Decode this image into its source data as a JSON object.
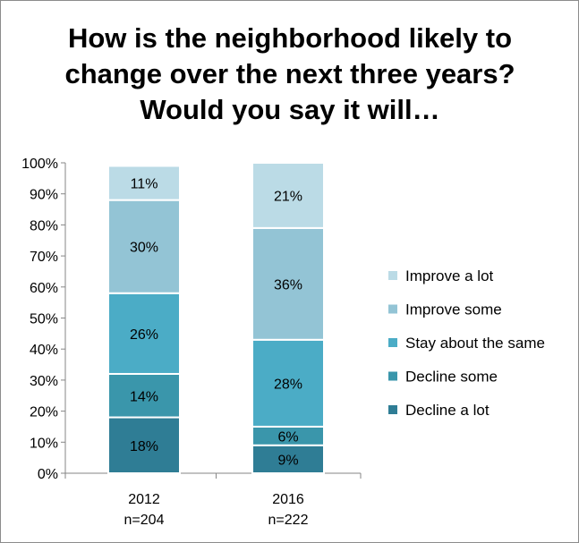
{
  "chart_data": {
    "type": "bar",
    "stacked": true,
    "percent": true,
    "title": "How is the neighborhood likely to change over the next three years? Would you say it will…",
    "categories": [
      {
        "year": "2012",
        "n": "n=204"
      },
      {
        "year": "2016",
        "n": "n=222"
      }
    ],
    "series": [
      {
        "name": "Decline a lot",
        "color": "#2f7d95",
        "values": [
          18,
          9
        ],
        "labels": [
          "18%",
          "9%"
        ]
      },
      {
        "name": "Decline some",
        "color": "#3a96ab",
        "values": [
          14,
          6
        ],
        "labels": [
          "14%",
          "6%"
        ]
      },
      {
        "name": "Stay about the same",
        "color": "#4bacc6",
        "values": [
          26,
          28
        ],
        "labels": [
          "26%",
          "28%"
        ]
      },
      {
        "name": "Improve some",
        "color": "#93c4d5",
        "values": [
          30,
          36
        ],
        "labels": [
          "30%",
          "36%"
        ]
      },
      {
        "name": "Improve a lot",
        "color": "#bbdbe6",
        "values": [
          11,
          21
        ],
        "labels": [
          "11%",
          "21%"
        ]
      }
    ],
    "legend_order": [
      "Improve a lot",
      "Improve some",
      "Stay about the same",
      "Decline some",
      "Decline a lot"
    ],
    "legend_position": "right",
    "yticks": [
      "0%",
      "10%",
      "20%",
      "30%",
      "40%",
      "50%",
      "60%",
      "70%",
      "80%",
      "90%",
      "100%"
    ],
    "ylim": [
      0,
      100
    ],
    "grid": false
  }
}
